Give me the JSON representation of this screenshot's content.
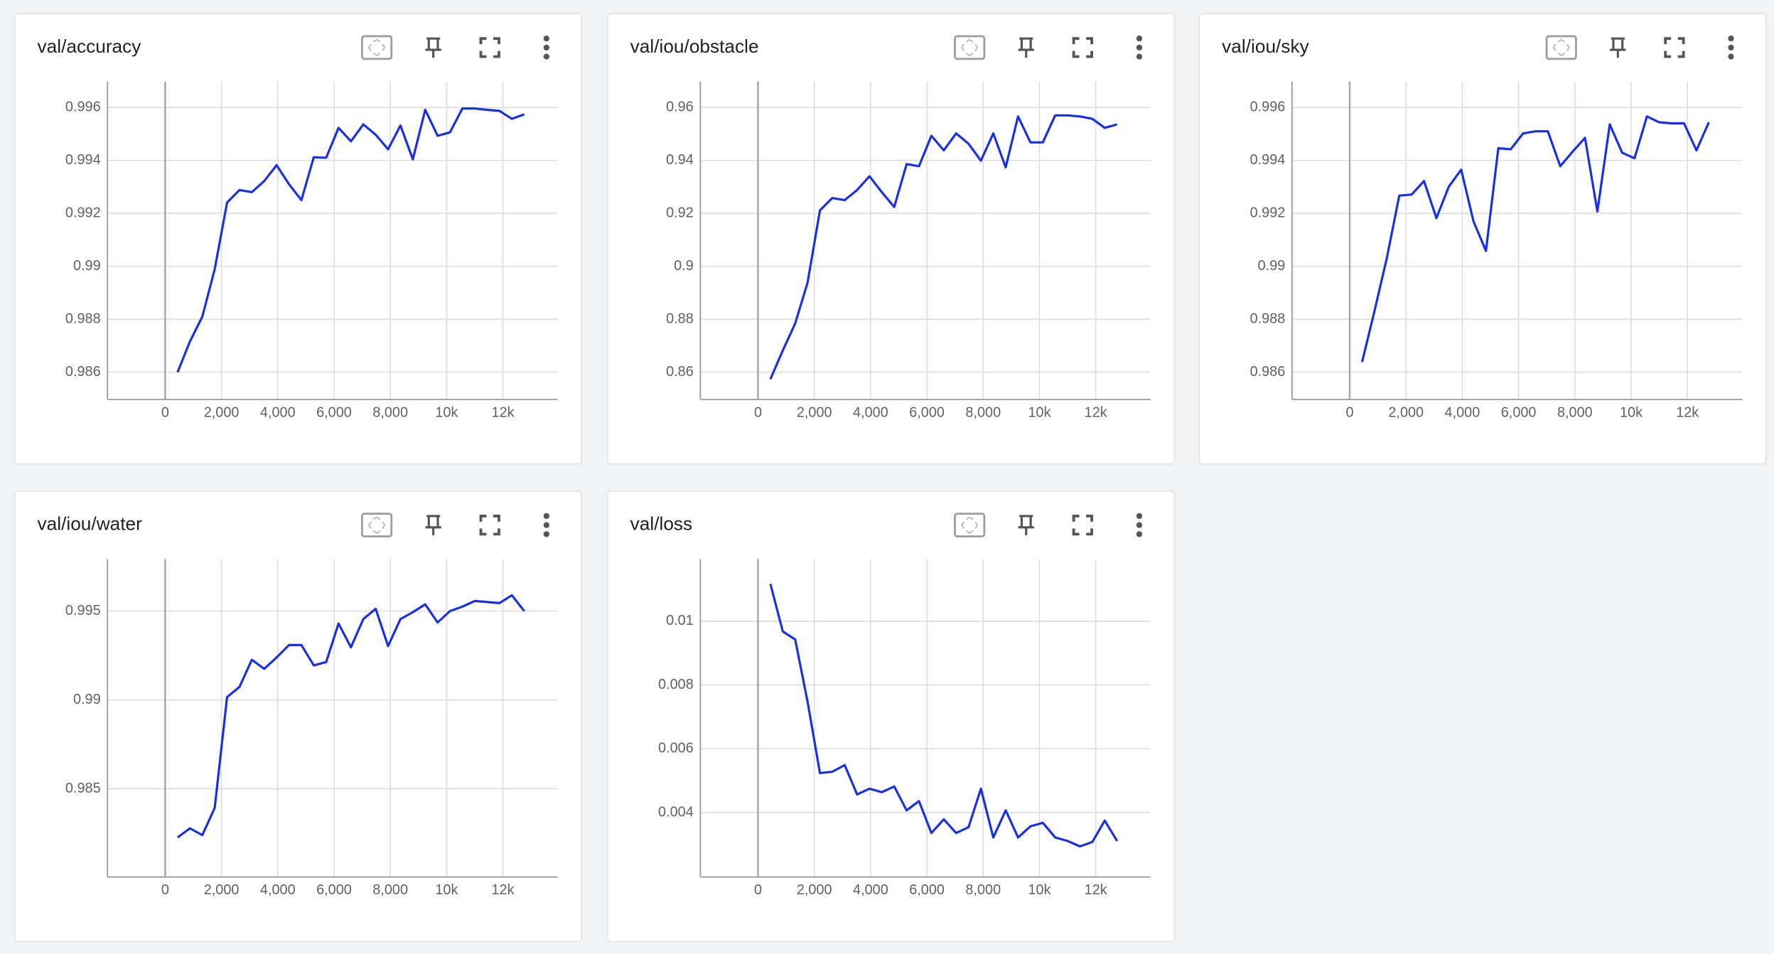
{
  "chart_data": [
    {
      "type": "line",
      "title": "val/accuracy",
      "color": "#1a2fe0",
      "x": [
        440,
        880,
        1320,
        1760,
        2200,
        2640,
        3080,
        3520,
        3960,
        4400,
        4840,
        5280,
        5720,
        6160,
        6600,
        7040,
        7480,
        7920,
        8360,
        8800,
        9240,
        9680,
        10120,
        10560,
        11000,
        11440,
        11880,
        12320,
        12760
      ],
      "values": [
        0.986,
        0.98716,
        0.9881,
        0.98989,
        0.99241,
        0.99288,
        0.9928,
        0.99322,
        0.99382,
        0.9931,
        0.9925,
        0.99412,
        0.9941,
        0.99523,
        0.99472,
        0.99536,
        0.99497,
        0.99442,
        0.99532,
        0.99404,
        0.99591,
        0.99493,
        0.99506,
        0.99596,
        0.99596,
        0.99591,
        0.99587,
        0.99557,
        0.99574
      ],
      "xlim": [
        -2050,
        13950
      ],
      "xticks": [
        0,
        {
          "value": 2000,
          "label": "2,000"
        },
        {
          "value": 4000,
          "label": "4,000"
        },
        {
          "value": 6000,
          "label": "6,000"
        },
        {
          "value": 8000,
          "label": "8,000"
        },
        {
          "value": 10000,
          "label": "10k"
        },
        {
          "value": 12000,
          "label": "12k"
        }
      ],
      "ylim": [
        0.98497,
        0.99698
      ],
      "yticks": [
        0.986,
        0.988,
        0.99,
        0.992,
        0.994,
        0.996
      ],
      "grid": true
    },
    {
      "type": "line",
      "title": "val/iou/obstacle",
      "color": "#1a2fe0",
      "x": [
        440,
        880,
        1320,
        1760,
        2200,
        2640,
        3080,
        3520,
        3960,
        4400,
        4840,
        5280,
        5720,
        6160,
        6600,
        7040,
        7480,
        7920,
        8360,
        8800,
        9240,
        9680,
        10120,
        10560,
        11000,
        11440,
        11880,
        12320,
        12760
      ],
      "values": [
        0.8574,
        0.8682,
        0.8784,
        0.8938,
        0.9211,
        0.9258,
        0.925,
        0.9288,
        0.934,
        0.928,
        0.9224,
        0.9386,
        0.9378,
        0.9493,
        0.9438,
        0.9502,
        0.9463,
        0.9399,
        0.9502,
        0.9374,
        0.9566,
        0.9468,
        0.9468,
        0.957,
        0.957,
        0.9566,
        0.9557,
        0.9523,
        0.9536
      ],
      "xlim": [
        -2050,
        13950
      ],
      "xticks": [
        0,
        {
          "value": 2000,
          "label": "2,000"
        },
        {
          "value": 4000,
          "label": "4,000"
        },
        {
          "value": 6000,
          "label": "6,000"
        },
        {
          "value": 8000,
          "label": "8,000"
        },
        {
          "value": 10000,
          "label": "10k"
        },
        {
          "value": 12000,
          "label": "12k"
        }
      ],
      "ylim": [
        0.8497,
        0.9698
      ],
      "yticks": [
        0.86,
        0.88,
        0.9,
        0.92,
        0.94,
        0.96
      ],
      "grid": true
    },
    {
      "type": "line",
      "title": "val/iou/sky",
      "color": "#1a2fe0",
      "x": [
        440,
        880,
        1320,
        1760,
        2200,
        2640,
        3080,
        3520,
        3960,
        4400,
        4840,
        5280,
        5720,
        6160,
        6600,
        7040,
        7480,
        7920,
        8360,
        8800,
        9240,
        9680,
        10120,
        10560,
        11000,
        11440,
        11880,
        12320,
        12760
      ],
      "values": [
        0.98639,
        0.98831,
        0.99032,
        0.99267,
        0.99271,
        0.99322,
        0.99182,
        0.99301,
        0.99365,
        0.99169,
        0.99058,
        0.99446,
        0.99442,
        0.99502,
        0.9951,
        0.9951,
        0.99378,
        0.99433,
        0.99485,
        0.99207,
        0.99536,
        0.99429,
        0.99408,
        0.99566,
        0.99544,
        0.9954,
        0.9954,
        0.99438,
        0.99544
      ],
      "xlim": [
        -2050,
        13950
      ],
      "xticks": [
        0,
        {
          "value": 2000,
          "label": "2,000"
        },
        {
          "value": 4000,
          "label": "4,000"
        },
        {
          "value": 6000,
          "label": "6,000"
        },
        {
          "value": 8000,
          "label": "8,000"
        },
        {
          "value": 10000,
          "label": "10k"
        },
        {
          "value": 12000,
          "label": "12k"
        }
      ],
      "ylim": [
        0.98497,
        0.99698
      ],
      "yticks": [
        0.986,
        0.988,
        0.99,
        0.992,
        0.994,
        0.996
      ],
      "grid": true
    },
    {
      "type": "line",
      "title": "val/iou/water",
      "color": "#1a2fe0",
      "x": [
        440,
        880,
        1320,
        1760,
        2200,
        2640,
        3080,
        3520,
        3960,
        4400,
        4840,
        5280,
        5720,
        6160,
        6600,
        7040,
        7480,
        7920,
        8360,
        8800,
        9240,
        9680,
        10120,
        10560,
        11000,
        11440,
        11880,
        12320,
        12760
      ],
      "values": [
        0.98226,
        0.98277,
        0.98239,
        0.98392,
        0.99016,
        0.99073,
        0.99226,
        0.99175,
        0.99239,
        0.99309,
        0.99309,
        0.99194,
        0.99213,
        0.9943,
        0.99296,
        0.99455,
        0.99513,
        0.99303,
        0.99455,
        0.99494,
        0.99538,
        0.99436,
        0.995,
        0.99525,
        0.99557,
        0.99551,
        0.99545,
        0.99589,
        0.995
      ],
      "xlim": [
        -2050,
        13950
      ],
      "xticks": [
        0,
        {
          "value": 2000,
          "label": "2,000"
        },
        {
          "value": 4000,
          "label": "4,000"
        },
        {
          "value": 6000,
          "label": "6,000"
        },
        {
          "value": 8000,
          "label": "8,000"
        },
        {
          "value": 10000,
          "label": "10k"
        },
        {
          "value": 12000,
          "label": "12k"
        }
      ],
      "ylim": [
        0.98003,
        0.99793
      ],
      "yticks": [
        0.985,
        0.99,
        0.995
      ],
      "grid": true
    },
    {
      "type": "line",
      "title": "val/loss",
      "color": "#1a2fe0",
      "x": [
        440,
        880,
        1320,
        1760,
        2200,
        2640,
        3080,
        3520,
        3960,
        4400,
        4840,
        5280,
        5720,
        6160,
        6600,
        7040,
        7480,
        7920,
        8360,
        8800,
        9240,
        9680,
        10120,
        10560,
        11000,
        11440,
        11880,
        12320,
        12760
      ],
      "values": [
        0.01117,
        0.00968,
        0.00943,
        0.00748,
        0.00524,
        0.00528,
        0.00549,
        0.00457,
        0.00475,
        0.00464,
        0.00482,
        0.00407,
        0.00436,
        0.00336,
        0.00379,
        0.00336,
        0.00354,
        0.00475,
        0.00322,
        0.00407,
        0.00322,
        0.00357,
        0.00368,
        0.00322,
        0.00311,
        0.00294,
        0.00308,
        0.00375,
        0.00311
      ],
      "xlim": [
        -2050,
        13950
      ],
      "xticks": [
        0,
        {
          "value": 2000,
          "label": "2,000"
        },
        {
          "value": 4000,
          "label": "4,000"
        },
        {
          "value": 6000,
          "label": "6,000"
        },
        {
          "value": 8000,
          "label": "8,000"
        },
        {
          "value": 10000,
          "label": "10k"
        },
        {
          "value": 12000,
          "label": "12k"
        }
      ],
      "ylim": [
        0.00198,
        0.01195
      ],
      "yticks": [
        0.004,
        0.006,
        0.008,
        0.01
      ],
      "grid": true
    }
  ]
}
